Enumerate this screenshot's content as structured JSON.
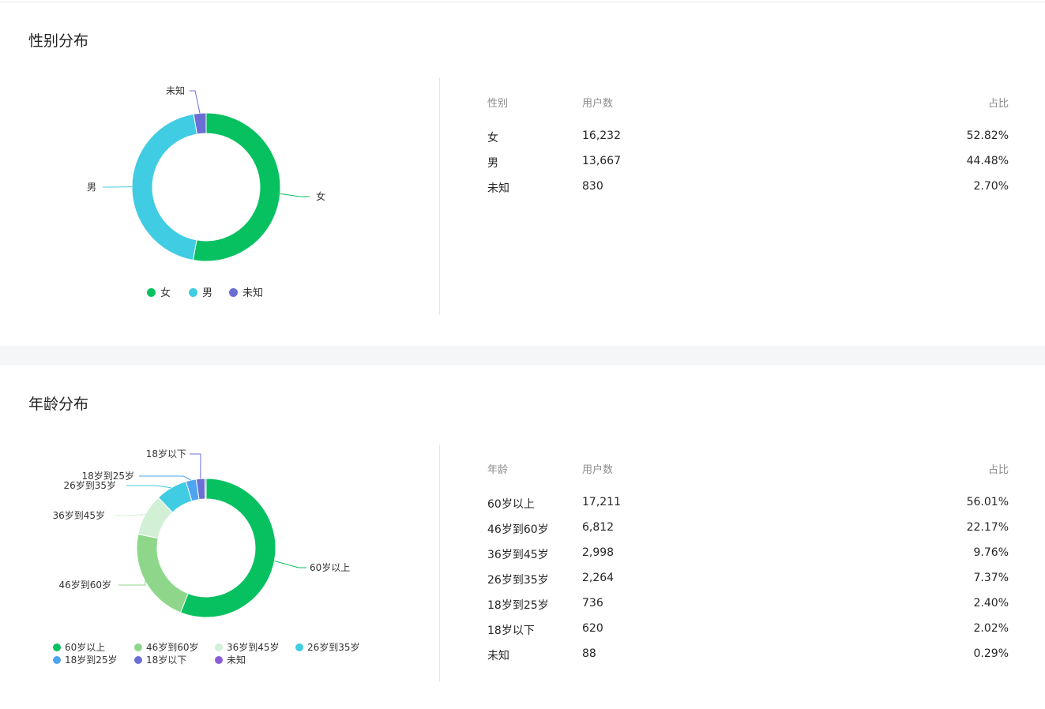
{
  "sections": {
    "gender": {
      "title": "性别分布",
      "table": {
        "headers": [
          "性别",
          "用户数",
          "占比"
        ],
        "rows": [
          [
            "女",
            "16,232",
            "52.82%"
          ],
          [
            "男",
            "13,667",
            "44.48%"
          ],
          [
            "未知",
            "830",
            "2.70%"
          ]
        ]
      }
    },
    "age": {
      "title": "年龄分布",
      "table": {
        "headers": [
          "年龄",
          "用户数",
          "占比"
        ],
        "rows": [
          [
            "60岁以上",
            "17,211",
            "56.01%"
          ],
          [
            "46岁到60岁",
            "6,812",
            "22.17%"
          ],
          [
            "36岁到45岁",
            "2,998",
            "9.76%"
          ],
          [
            "26岁到35岁",
            "2,264",
            "7.37%"
          ],
          [
            "18岁到25岁",
            "736",
            "2.40%"
          ],
          [
            "18岁以下",
            "620",
            "2.02%"
          ],
          [
            "未知",
            "88",
            "0.29%"
          ]
        ]
      }
    }
  },
  "chart_data": [
    {
      "type": "pie",
      "variant": "donut",
      "categories": [
        "女",
        "男",
        "未知"
      ],
      "values": [
        16232,
        13667,
        830
      ],
      "colors": [
        "#07c160",
        "#40cce3",
        "#6b6fd4"
      ],
      "legend_position": "bottom"
    },
    {
      "type": "pie",
      "variant": "donut",
      "categories": [
        "60岁以上",
        "46岁到60岁",
        "36岁到45岁",
        "26岁到35岁",
        "18岁到25岁",
        "18岁以下",
        "未知"
      ],
      "values": [
        17211,
        6812,
        2998,
        2264,
        736,
        620,
        88
      ],
      "colors": [
        "#07c160",
        "#8ed78a",
        "#d2f0d6",
        "#40cce3",
        "#4ea4ee",
        "#6b6fd4",
        "#8b5cd6"
      ],
      "legend_position": "bottom"
    }
  ]
}
